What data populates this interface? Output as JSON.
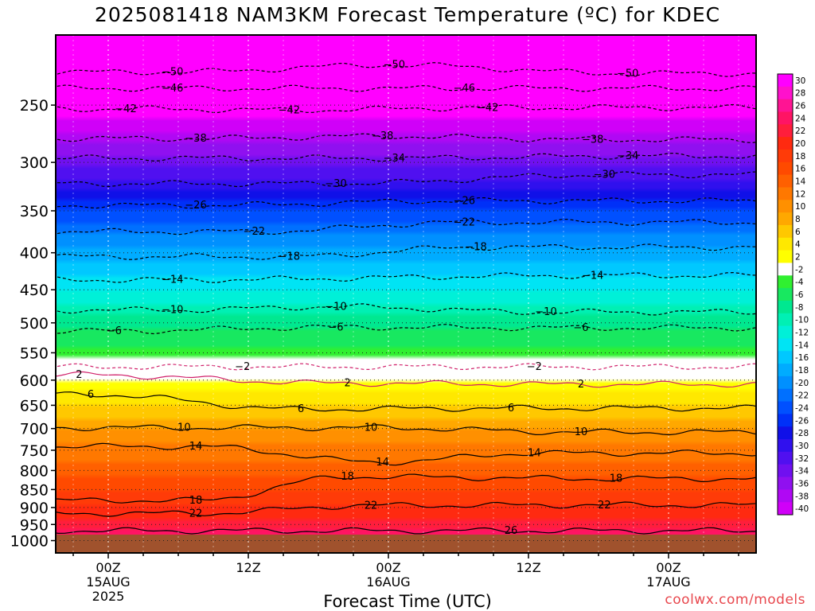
{
  "title": "2025081418 NAM3KM Forecast Temperature (ºC) for KDEC",
  "credit": "coolwx.com/models",
  "chart_data": {
    "type": "heatmap",
    "title": "2025081418 NAM3KM Forecast Temperature (ºC) for KDEC",
    "xlabel": "Forecast Time (UTC)",
    "ylabel": "",
    "x_range_hours_from_00Z_15AUG": [
      -4.5,
      55.5
    ],
    "y_log_scale": true,
    "y_range_hpa": [
      1040,
      200
    ],
    "y_ticks": [
      250,
      300,
      350,
      400,
      450,
      500,
      550,
      600,
      650,
      700,
      750,
      800,
      850,
      900,
      950,
      1000
    ],
    "x_ticks": [
      {
        "hour": 0,
        "lines": [
          "00Z",
          "15AUG",
          "2025"
        ]
      },
      {
        "hour": 12,
        "lines": [
          "12Z"
        ]
      },
      {
        "hour": 24,
        "lines": [
          "00Z",
          "16AUG"
        ]
      },
      {
        "hour": 36,
        "lines": [
          "12Z"
        ]
      },
      {
        "hour": 48,
        "lines": [
          "00Z",
          "17AUG"
        ]
      }
    ],
    "grid": true,
    "colorbar_labels": [
      "30",
      "28",
      "26",
      "24",
      "22",
      "20",
      "18",
      "16",
      "14",
      "12",
      "10",
      "8",
      "6",
      "4",
      "2",
      "-2",
      "-4",
      "-6",
      "-8",
      "-10",
      "-12",
      "-14",
      "-16",
      "-18",
      "-20",
      "-22",
      "-24",
      "-26",
      "-28",
      "-30",
      "-32",
      "-34",
      "-36",
      "-38",
      "-40"
    ],
    "colorbar_colors": [
      "#ff00ff",
      "#ff11cc",
      "#ff1493",
      "#ff1464",
      "#ff1e3c",
      "#ff2a10",
      "#ff3b08",
      "#ff4a00",
      "#ff6000",
      "#ff7800",
      "#ff9000",
      "#ffa800",
      "#ffc800",
      "#ffe800",
      "#ffff00",
      "#ffffff",
      "#30f030",
      "#18e860",
      "#00e890",
      "#00f0b4",
      "#00f0d8",
      "#00e4f4",
      "#00c8ff",
      "#00acff",
      "#0090ff",
      "#0070ff",
      "#0050ff",
      "#0030f8",
      "#1010e8",
      "#3010ee",
      "#5010f0",
      "#7010f0",
      "#9010f0",
      "#b008f4",
      "#d000f8",
      "#ff00ff"
    ],
    "ground_color": "#a0522d",
    "temperature_profile": [
      {
        "p": 1000,
        "t": 26
      },
      {
        "p": 950,
        "t": 23.5
      },
      {
        "p": 900,
        "t": 20
      },
      {
        "p": 850,
        "t": 17.5
      },
      {
        "p": 800,
        "t": 15
      },
      {
        "p": 750,
        "t": 13
      },
      {
        "p": 700,
        "t": 10
      },
      {
        "p": 650,
        "t": 6
      },
      {
        "p": 600,
        "t": 2
      },
      {
        "p": 550,
        "t": -3
      },
      {
        "p": 500,
        "t": -7
      },
      {
        "p": 450,
        "t": -12
      },
      {
        "p": 400,
        "t": -17
      },
      {
        "p": 350,
        "t": -24
      },
      {
        "p": 300,
        "t": -33
      },
      {
        "p": 250,
        "t": -42
      },
      {
        "p": 200,
        "t": -52
      }
    ],
    "contour_labels": [
      {
        "h": 5.5,
        "p": 225,
        "text": "−50"
      },
      {
        "h": 24.5,
        "p": 220,
        "text": "−50"
      },
      {
        "h": 44.5,
        "p": 226,
        "text": "−50"
      },
      {
        "h": 5.5,
        "p": 237,
        "text": "−46"
      },
      {
        "h": 30.5,
        "p": 237,
        "text": "−46"
      },
      {
        "h": 1.5,
        "p": 253,
        "text": "−42"
      },
      {
        "h": 15.5,
        "p": 254,
        "text": "−42"
      },
      {
        "h": 32.5,
        "p": 252,
        "text": "−42"
      },
      {
        "h": 7.5,
        "p": 278,
        "text": "−38"
      },
      {
        "h": 23.5,
        "p": 276,
        "text": "−38"
      },
      {
        "h": 41.5,
        "p": 279,
        "text": "−38"
      },
      {
        "h": 24.5,
        "p": 296,
        "text": "−34"
      },
      {
        "h": 44.5,
        "p": 294,
        "text": "−34"
      },
      {
        "h": 19.5,
        "p": 321,
        "text": "−30"
      },
      {
        "h": 42.5,
        "p": 312,
        "text": "−30"
      },
      {
        "h": 7.5,
        "p": 344,
        "text": "−26"
      },
      {
        "h": 30.5,
        "p": 339,
        "text": "−26"
      },
      {
        "h": 12.5,
        "p": 374,
        "text": "−22"
      },
      {
        "h": 30.5,
        "p": 363,
        "text": "−22"
      },
      {
        "h": 15.5,
        "p": 405,
        "text": "−18"
      },
      {
        "h": 31.5,
        "p": 393,
        "text": "−18"
      },
      {
        "h": 5.5,
        "p": 436,
        "text": "−14"
      },
      {
        "h": 41.5,
        "p": 430,
        "text": "−14"
      },
      {
        "h": 5.5,
        "p": 480,
        "text": "−10"
      },
      {
        "h": 19.5,
        "p": 475,
        "text": "−10"
      },
      {
        "h": 37.5,
        "p": 483,
        "text": "−10"
      },
      {
        "h": 0.5,
        "p": 513,
        "text": "−6"
      },
      {
        "h": 19.5,
        "p": 507,
        "text": "−6"
      },
      {
        "h": 40.5,
        "p": 508,
        "text": "−6"
      },
      {
        "h": 11.5,
        "p": 575,
        "text": "−2"
      },
      {
        "h": 36.5,
        "p": 575,
        "text": "−2"
      },
      {
        "h": -2.5,
        "p": 590,
        "text": "2"
      },
      {
        "h": 20.5,
        "p": 606,
        "text": "2"
      },
      {
        "h": 40.5,
        "p": 608,
        "text": "2"
      },
      {
        "h": -1.5,
        "p": 628,
        "text": "6"
      },
      {
        "h": 16.5,
        "p": 658,
        "text": "6"
      },
      {
        "h": 34.5,
        "p": 656,
        "text": "6"
      },
      {
        "h": 6.5,
        "p": 698,
        "text": "10"
      },
      {
        "h": 22.5,
        "p": 698,
        "text": "10"
      },
      {
        "h": 40.5,
        "p": 708,
        "text": "10"
      },
      {
        "h": 7.5,
        "p": 741,
        "text": "14"
      },
      {
        "h": 23.5,
        "p": 779,
        "text": "14"
      },
      {
        "h": 36.5,
        "p": 757,
        "text": "14"
      },
      {
        "h": 20.5,
        "p": 816,
        "text": "18"
      },
      {
        "h": 43.5,
        "p": 821,
        "text": "18"
      },
      {
        "h": 7.5,
        "p": 880,
        "text": "18"
      },
      {
        "h": 7.5,
        "p": 917,
        "text": "22"
      },
      {
        "h": 22.5,
        "p": 894,
        "text": "22"
      },
      {
        "h": 42.5,
        "p": 893,
        "text": "22"
      },
      {
        "h": 34.5,
        "p": 969,
        "text": "26"
      }
    ]
  }
}
